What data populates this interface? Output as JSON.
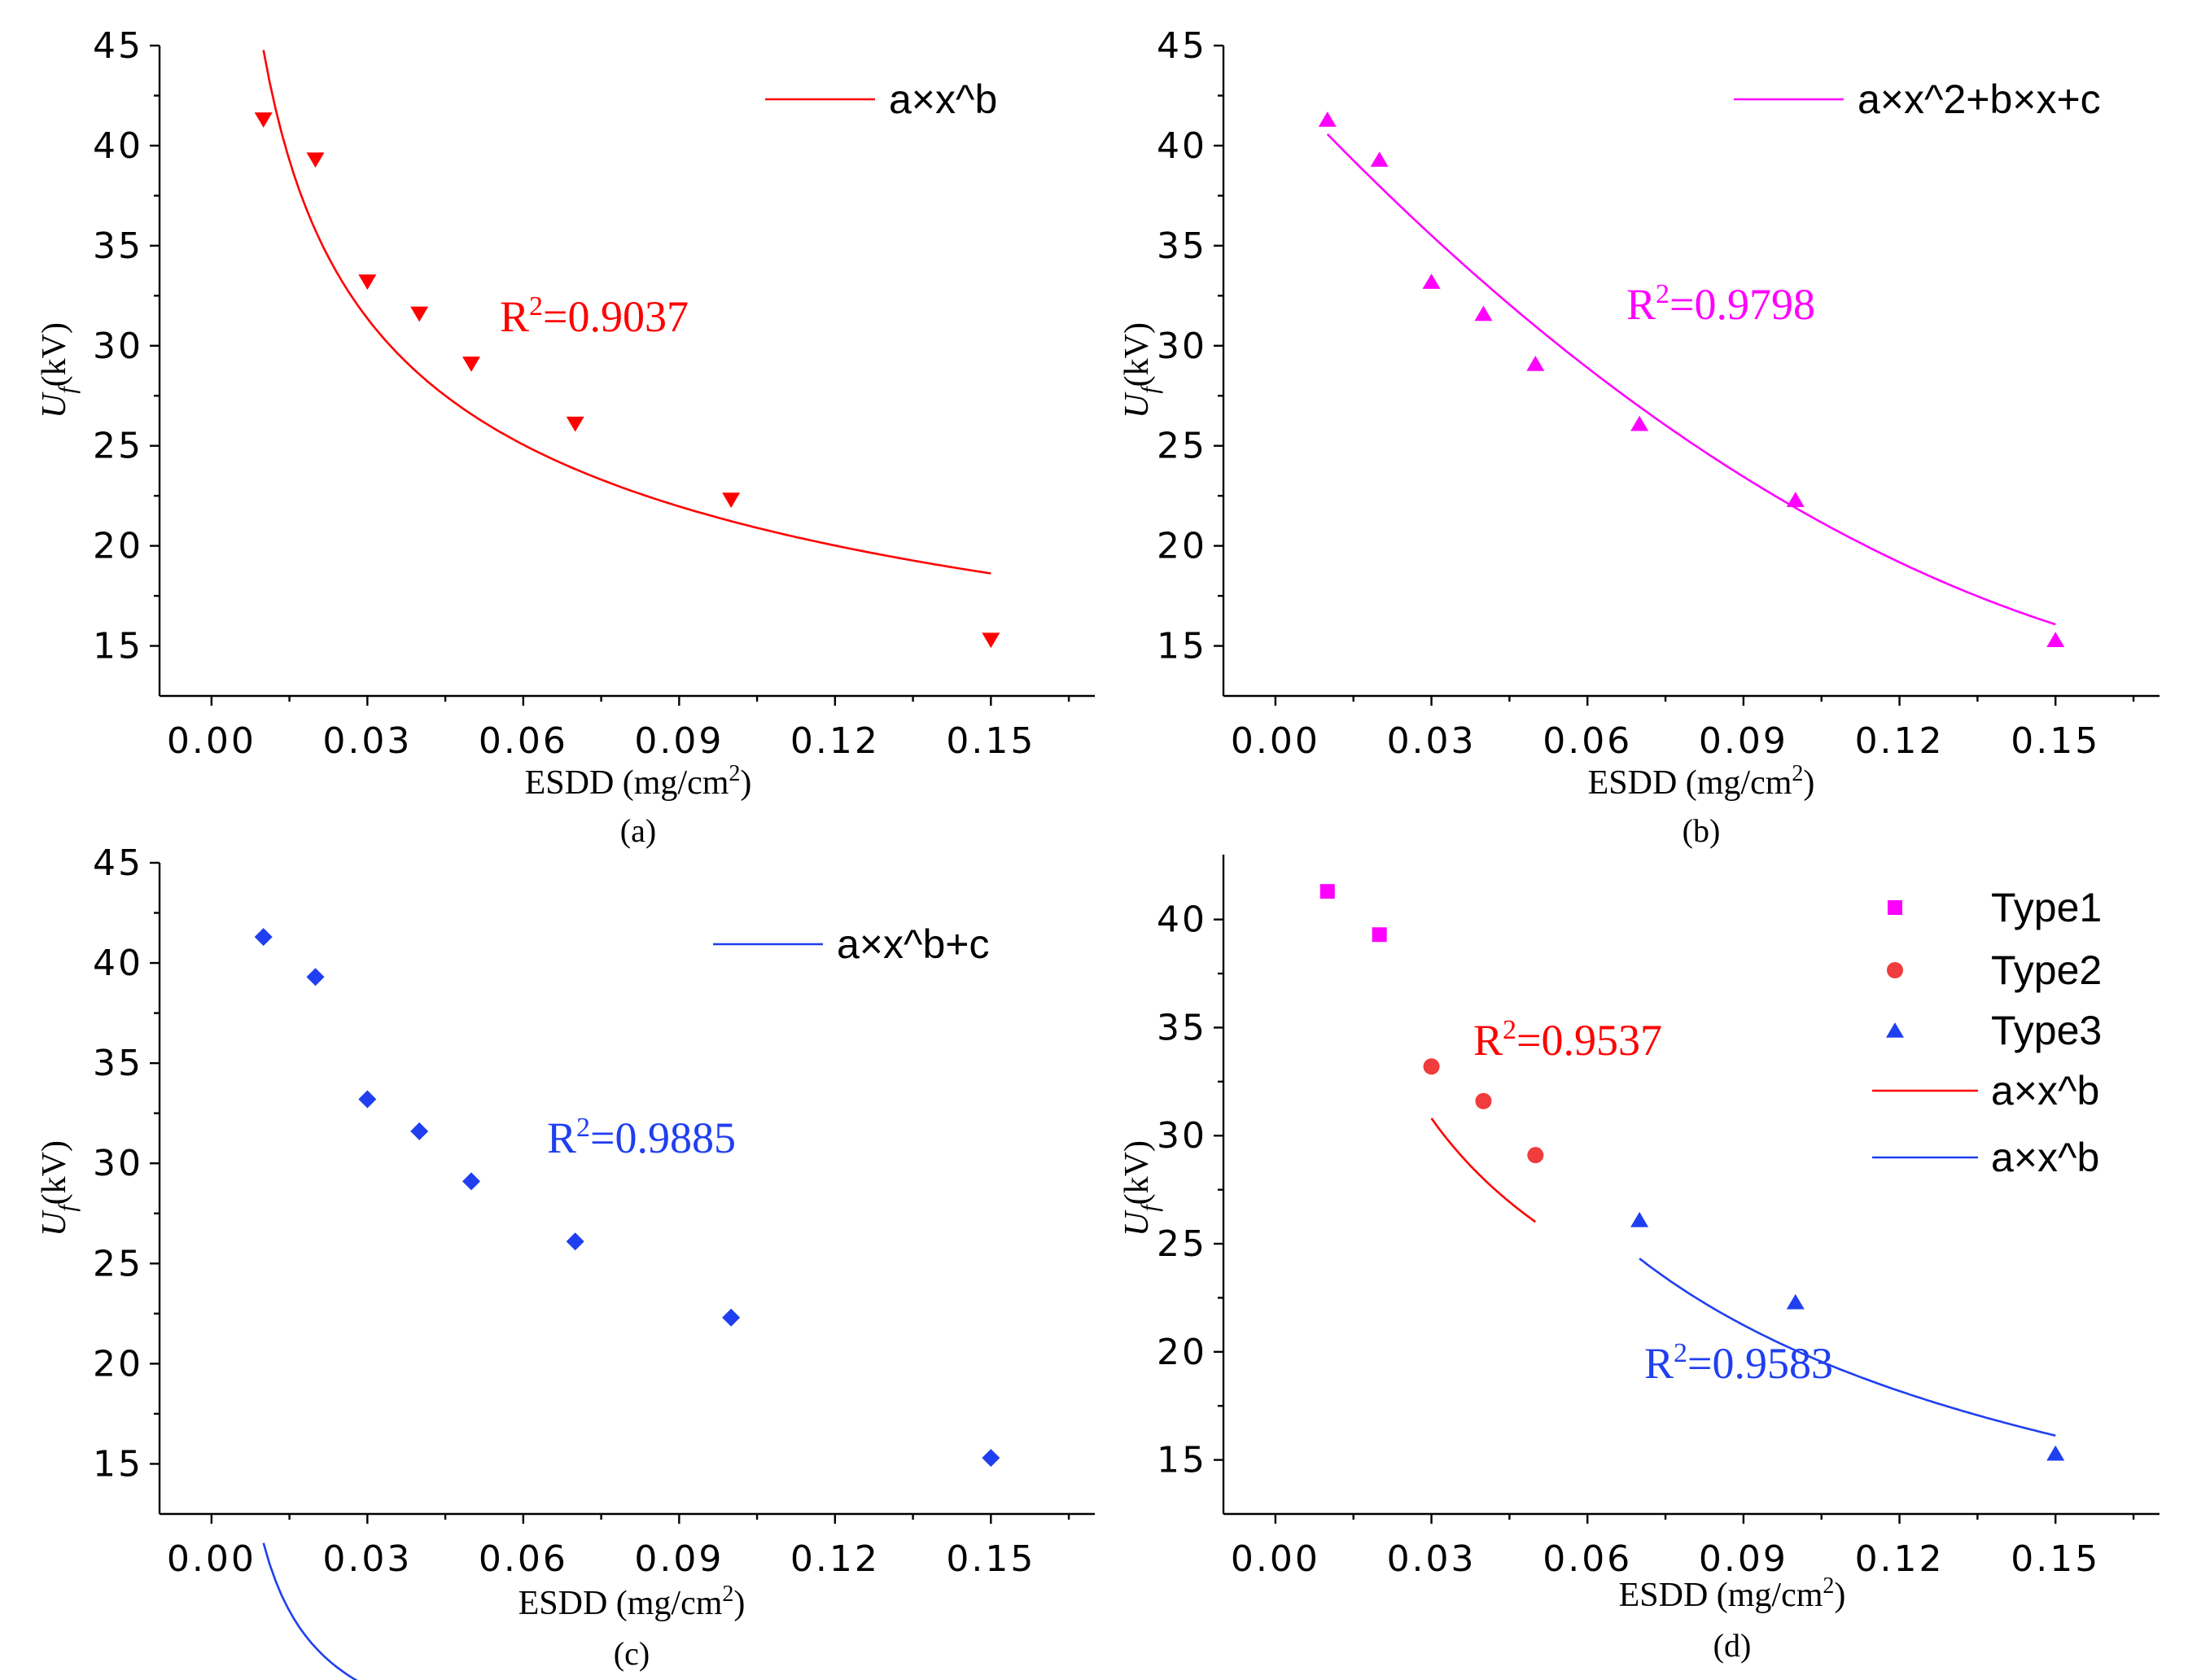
{
  "chart_data": [
    {
      "id": "a",
      "type": "scatter",
      "caption": "(a)",
      "xlabel": "ESDD (mg/cm",
      "xlabel_sup": "2",
      "xlabel_end": ")",
      "ylabel_main": "U",
      "ylabel_sub": "f",
      "ylabel_unit": "(kV)",
      "xlim": [
        -0.01,
        0.17
      ],
      "ylim": [
        12.5,
        45
      ],
      "xticks": [
        "0.00",
        "0.03",
        "0.06",
        "0.09",
        "0.12",
        "0.15"
      ],
      "xtick_values": [
        0,
        0.03,
        0.06,
        0.09,
        0.12,
        0.15
      ],
      "yticks": [
        "15",
        "20",
        "25",
        "30",
        "35",
        "40",
        "45"
      ],
      "ytick_values": [
        15,
        20,
        25,
        30,
        35,
        40,
        45
      ],
      "legend": "a×x^b",
      "color": "#ff0000",
      "marker": "triangle-down",
      "series": [
        {
          "name": "data",
          "x": [
            0.01,
            0.02,
            0.03,
            0.04,
            0.05,
            0.07,
            0.1,
            0.15
          ],
          "y": [
            41.3,
            39.3,
            33.2,
            31.6,
            29.1,
            26.1,
            22.3,
            15.3
          ]
        }
      ],
      "fits": [
        {
          "legend": "a×x^b",
          "model": "power",
          "a": 10.07,
          "b": -0.324,
          "c": 0,
          "x_range": [
            0.01,
            0.15
          ],
          "color": "#ff0000"
        }
      ],
      "annotations": [
        {
          "base": "R",
          "sup": "2",
          "rest": "=0.9037",
          "color": "#ff0000"
        }
      ]
    },
    {
      "id": "b",
      "type": "scatter",
      "caption": "(b)",
      "xlabel": "ESDD (mg/cm",
      "xlabel_sup": "2",
      "xlabel_end": ")",
      "ylabel_main": "U",
      "ylabel_sub": "f",
      "ylabel_unit": "(kV)",
      "xlim": [
        -0.01,
        0.17
      ],
      "ylim": [
        12.5,
        45
      ],
      "xticks": [
        "0.00",
        "0.03",
        "0.06",
        "0.09",
        "0.12",
        "0.15"
      ],
      "xtick_values": [
        0,
        0.03,
        0.06,
        0.09,
        0.12,
        0.15
      ],
      "yticks": [
        "15",
        "20",
        "25",
        "30",
        "35",
        "40",
        "45"
      ],
      "ytick_values": [
        15,
        20,
        25,
        30,
        35,
        40,
        45
      ],
      "legend": "a×x^2+b×x+c",
      "color": "#ff00ff",
      "marker": "triangle-up",
      "series": [
        {
          "name": "data",
          "x": [
            0.01,
            0.02,
            0.03,
            0.04,
            0.05,
            0.07,
            0.1,
            0.15
          ],
          "y": [
            41.3,
            39.3,
            33.2,
            31.6,
            29.1,
            26.1,
            22.3,
            15.3
          ]
        }
      ],
      "fits": [
        {
          "legend": "a×x^2+b×x+c",
          "model": "quadratic",
          "a": 650,
          "b": -279,
          "c": 43.3,
          "x_range": [
            0.01,
            0.15
          ],
          "color": "#ff00ff"
        }
      ],
      "annotations": [
        {
          "base": "R",
          "sup": "2",
          "rest": "=0.9798",
          "color": "#ff00ff"
        }
      ]
    },
    {
      "id": "c",
      "type": "scatter",
      "caption": "(c)",
      "xlabel": "ESDD (mg/cm",
      "xlabel_sup": "2",
      "xlabel_end": ")",
      "ylabel_main": "U",
      "ylabel_sub": "f",
      "ylabel_unit": "(kV)",
      "xlim": [
        -0.01,
        0.17
      ],
      "ylim": [
        12.5,
        45
      ],
      "xticks": [
        "0.00",
        "0.03",
        "0.06",
        "0.09",
        "0.12",
        "0.15"
      ],
      "xtick_values": [
        0,
        0.03,
        0.06,
        0.09,
        0.12,
        0.15
      ],
      "yticks": [
        "15",
        "20",
        "25",
        "30",
        "35",
        "40",
        "45"
      ],
      "ytick_values": [
        15,
        20,
        25,
        30,
        35,
        40,
        45
      ],
      "legend": "a×x^b+c",
      "color": "#1f3ff0",
      "marker": "diamond",
      "series": [
        {
          "name": "data",
          "x": [
            0.01,
            0.02,
            0.03,
            0.04,
            0.05,
            0.07,
            0.1,
            0.15
          ],
          "y": [
            41.3,
            39.3,
            33.2,
            31.6,
            29.1,
            26.1,
            22.3,
            15.3
          ]
        }
      ],
      "fits": [
        {
          "legend": "a×x^b+c",
          "model": "power_offset",
          "a": 0.3077,
          "b": -0.8,
          "c": -1.2,
          "x_range": [
            0.01,
            0.15
          ],
          "color": "#1f3ff0"
        }
      ],
      "annotations": [
        {
          "base": "R",
          "sup": "2",
          "rest": "=0.9885",
          "color": "#1f3ff0"
        }
      ]
    },
    {
      "id": "d",
      "type": "scatter",
      "caption": "(d)",
      "xlabel": "ESDD (mg/cm",
      "xlabel_sup": "2",
      "xlabel_end": ")",
      "ylabel_main": "U",
      "ylabel_sub": "f",
      "ylabel_unit": "(kV)",
      "xlim": [
        -0.01,
        0.17
      ],
      "ylim": [
        12.5,
        43
      ],
      "xticks": [
        "0.00",
        "0.03",
        "0.06",
        "0.09",
        "0.12",
        "0.15"
      ],
      "xtick_values": [
        0,
        0.03,
        0.06,
        0.09,
        0.12,
        0.15
      ],
      "yticks": [
        "15",
        "20",
        "25",
        "30",
        "35",
        "40"
      ],
      "ytick_values": [
        15,
        20,
        25,
        30,
        35,
        40
      ],
      "series": [
        {
          "name": "Type1",
          "x": [
            0.01,
            0.02
          ],
          "y": [
            41.3,
            39.3
          ],
          "color": "#ff00ff",
          "marker": "square"
        },
        {
          "name": "Type2",
          "x": [
            0.03,
            0.04,
            0.05
          ],
          "y": [
            33.2,
            31.6,
            29.1
          ],
          "color": "#f03c3c",
          "marker": "circle"
        },
        {
          "name": "Type3",
          "x": [
            0.07,
            0.1,
            0.15
          ],
          "y": [
            26.1,
            22.3,
            15.3
          ],
          "color": "#1f3ff0",
          "marker": "triangle-up"
        }
      ],
      "fits": [
        {
          "legend": "a×x^b",
          "model": "power",
          "a": 9.65,
          "b": -0.331,
          "c": 0,
          "x_range": [
            0.03,
            0.05
          ],
          "color": "#ff0000"
        },
        {
          "legend": "a×x^b",
          "model": "power",
          "a": 5.8,
          "b": -0.539,
          "c": 0,
          "x_range": [
            0.07,
            0.15
          ],
          "color": "#1f3ff0"
        }
      ],
      "annotations": [
        {
          "base": "R",
          "sup": "2",
          "rest": "=0.9537",
          "color": "#ff0000"
        },
        {
          "base": "R",
          "sup": "2",
          "rest": "=0.9583",
          "color": "#1f3ff0"
        }
      ]
    }
  ]
}
